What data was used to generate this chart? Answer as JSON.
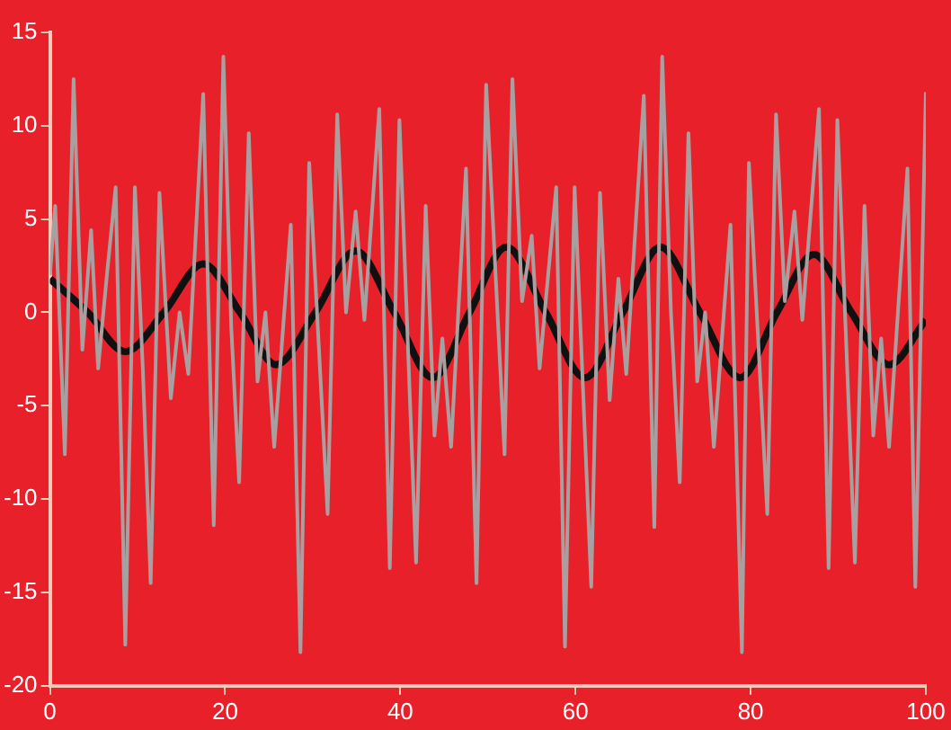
{
  "chart_data": {
    "type": "line",
    "xlim": [
      0,
      100
    ],
    "ylim": [
      -20,
      15
    ],
    "xticks": [
      0,
      20,
      40,
      60,
      80,
      100
    ],
    "yticks": [
      -20,
      -15,
      -10,
      -5,
      0,
      5,
      10,
      15
    ],
    "grid": false,
    "legend": false,
    "marker": "none",
    "line_style": "solid",
    "series": [
      {
        "color": "#a8a0a0",
        "x": [
          0,
          0.6,
          1.7,
          2.7,
          3.7,
          4.7,
          5.5,
          6.5,
          7.5,
          8.6,
          9.7,
          10.6,
          11.5,
          12.5,
          13.8,
          14.8,
          15.8,
          17.5,
          18.7,
          19.8,
          20.7,
          21.6,
          22.7,
          23.7,
          24.6,
          25.6,
          27.5,
          28.6,
          29.6,
          31.7,
          32.8,
          33.8,
          34.9,
          35.9,
          37.6,
          38.8,
          39.9,
          41.8,
          42.9,
          43.9,
          44.8,
          45.8,
          47.5,
          48.7,
          49.8,
          51.9,
          52.8,
          53.9,
          55,
          55.9,
          57.8,
          58.8,
          59.9,
          61.8,
          62.8,
          63.9,
          64.9,
          65.8,
          67.8,
          69,
          69.9,
          70.9,
          71.9,
          72.9,
          73.9,
          74.8,
          75.8,
          77.7,
          79,
          79.8,
          81.9,
          82.9,
          83.9,
          85,
          85.9,
          87.8,
          88.9,
          89.9,
          91.9,
          93,
          94,
          94.9,
          95.8,
          97.9,
          98.8,
          100
        ],
        "values": [
          2,
          5.7,
          -7.6,
          12.5,
          -2,
          4.4,
          -3,
          2,
          6.7,
          -17.8,
          6.7,
          -3,
          -14.5,
          6.4,
          -4.6,
          0,
          -3.3,
          11.7,
          -11.4,
          13.7,
          -0.8,
          -9.1,
          9.6,
          -3.7,
          0,
          -7.2,
          4.7,
          -18.2,
          8,
          -10.8,
          10.6,
          0,
          5.4,
          -0.4,
          10.9,
          -13.7,
          10.3,
          -13.4,
          5.7,
          -6.6,
          -1.4,
          -7.2,
          7.7,
          -14.5,
          12.2,
          -7.6,
          12.5,
          0.6,
          4.1,
          -3,
          6.7,
          -17.9,
          6.7,
          -14.7,
          6.4,
          -4.7,
          1.8,
          -3.3,
          11.6,
          -11.5,
          13.7,
          0,
          -9.1,
          9.6,
          -3.7,
          0,
          -7.2,
          4.7,
          -18.2,
          8,
          -10.8,
          10.6,
          0.6,
          5.4,
          -0.4,
          10.9,
          -13.7,
          10.3,
          -13.4,
          5.7,
          -6.6,
          -1.4,
          -7.2,
          7.7,
          -14.7,
          11.8
        ]
      },
      {
        "color": "#101010",
        "x": [
          0,
          4.3,
          8.6,
          13,
          17.5,
          21.7,
          25.8,
          30.3,
          34.9,
          39.3,
          43.7,
          47.9,
          52.1,
          56.6,
          61.1,
          65.4,
          69.7,
          74.2,
          78.8,
          83,
          87.2,
          91.5,
          95.8,
          100
        ],
        "values": [
          1.8,
          0,
          -2.1,
          0,
          2.6,
          0,
          -2.8,
          0,
          3.3,
          0,
          -3.5,
          0,
          3.5,
          0,
          -3.5,
          0,
          3.5,
          0,
          -3.5,
          0,
          3.1,
          0,
          -2.8,
          -0.4
        ]
      }
    ]
  }
}
